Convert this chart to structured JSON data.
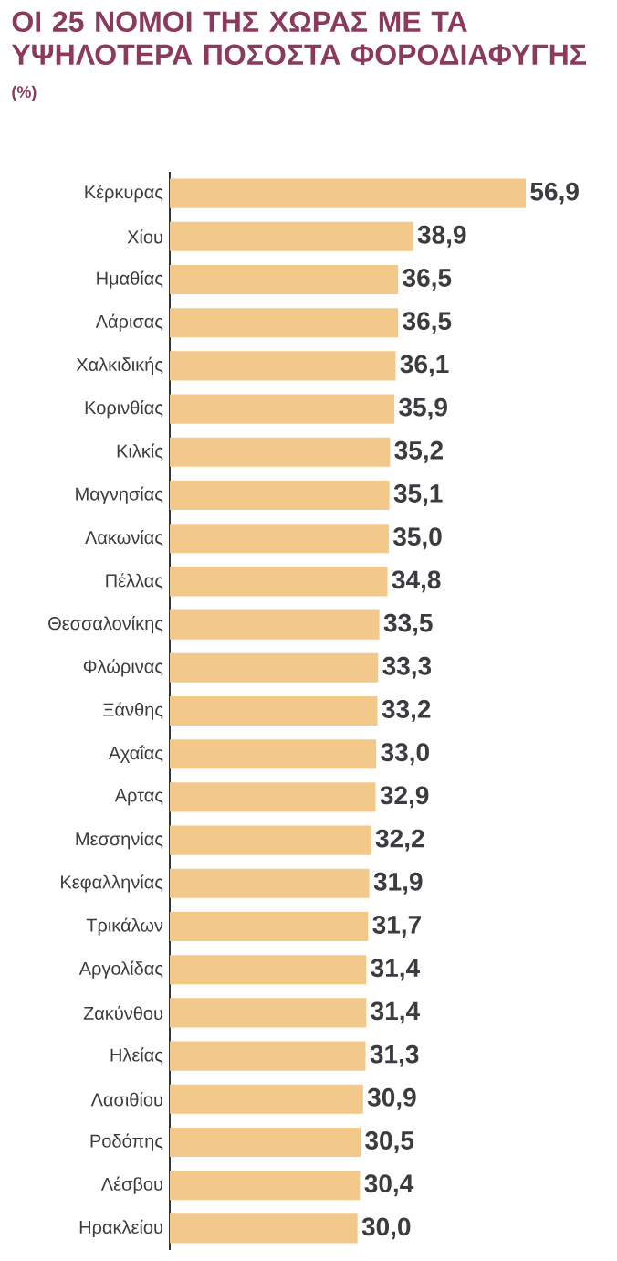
{
  "chart_data": {
    "type": "bar",
    "orientation": "horizontal",
    "title": "ΟΙ 25 ΝΟΜΟΙ ΤΗΣ ΧΩΡΑΣ ΜΕ ΤΑ ΥΨΗΛΟΤΕΡΑ ΠΟΣΟΣΤΑ ΦΟΡΟΔΙΑΦΥΓΗΣ",
    "subtitle": "(%)",
    "categories": [
      "Κέρκυρας",
      "Χίου",
      "Ημαθίας",
      "Λάρισας",
      "Χαλκιδικής",
      "Κορινθίας",
      "Κιλκίς",
      "Μαγνησίας",
      "Λακωνίας",
      "Πέλλας",
      "Θεσσαλονίκης",
      "Φλώρινας",
      "Ξάνθης",
      "Αχαΐας",
      "Αρτας",
      "Μεσσηνίας",
      "Κεφαλληνίας",
      "Τρικάλων",
      "Αργολίδας",
      "Ζακύνθου",
      "Ηλείας",
      "Λασιθίου",
      "Ροδόπης",
      "Λέσβου",
      "Ηρακλείου"
    ],
    "values": [
      56.9,
      38.9,
      36.5,
      36.5,
      36.1,
      35.9,
      35.2,
      35.1,
      35.0,
      34.8,
      33.5,
      33.3,
      33.2,
      33.0,
      32.9,
      32.2,
      31.9,
      31.7,
      31.4,
      31.4,
      31.3,
      30.9,
      30.5,
      30.4,
      30.0
    ],
    "value_labels": [
      "56,9",
      "38,9",
      "36,5",
      "36,5",
      "36,1",
      "35,9",
      "35,2",
      "35,1",
      "35,0",
      "34,8",
      "33,5",
      "33,3",
      "33,2",
      "33,0",
      "32,9",
      "32,2",
      "31,9",
      "31,7",
      "31,4",
      "31,4",
      "31,3",
      "30,9",
      "30,5",
      "30,4",
      "30,0"
    ],
    "color": "#f3c98b"
  }
}
